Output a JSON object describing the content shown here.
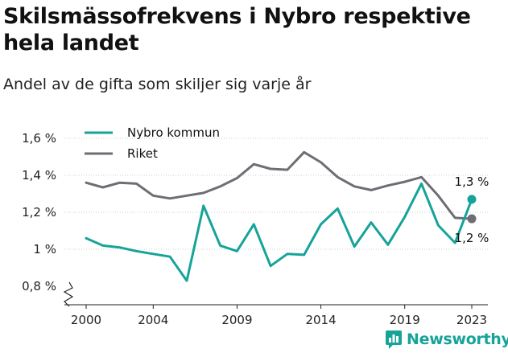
{
  "chart_data": {
    "type": "line",
    "title": "Skilsmässofrekvens i Nybro respektive hela landet",
    "subtitle": "Andel av de gifta som skiljer sig varje år",
    "xlabel": "",
    "ylabel": "",
    "x": [
      2000,
      2001,
      2002,
      2003,
      2004,
      2005,
      2006,
      2007,
      2008,
      2009,
      2010,
      2011,
      2012,
      2013,
      2014,
      2015,
      2016,
      2017,
      2018,
      2019,
      2020,
      2021,
      2022,
      2023
    ],
    "xticks": [
      2000,
      2004,
      2009,
      2014,
      2019,
      2023
    ],
    "xtick_labels": [
      "2000",
      "2004",
      "2009",
      "2014",
      "2019",
      "2023"
    ],
    "yticks": [
      0.8,
      1.0,
      1.2,
      1.4,
      1.6
    ],
    "ytick_labels": [
      "0,8 %",
      "1 %",
      "1,2 %",
      "1,4 %",
      "1,6 %"
    ],
    "ylim": [
      0.8,
      1.6
    ],
    "xlim": [
      2000,
      2023
    ],
    "grid": "horizontal",
    "legend_position": "top-left",
    "series": [
      {
        "name": "Nybro kommun",
        "color": "#16a39a",
        "values": [
          1.06,
          1.02,
          1.01,
          0.99,
          0.975,
          0.96,
          0.83,
          1.235,
          1.02,
          0.99,
          1.135,
          0.91,
          0.975,
          0.97,
          1.135,
          1.22,
          1.015,
          1.145,
          1.025,
          1.175,
          1.355,
          1.13,
          1.035,
          1.27
        ],
        "end_label": "1,3 %"
      },
      {
        "name": "Riket",
        "color": "#6e6d74",
        "values": [
          1.36,
          1.335,
          1.36,
          1.355,
          1.29,
          1.275,
          1.29,
          1.305,
          1.34,
          1.385,
          1.46,
          1.435,
          1.43,
          1.525,
          1.47,
          1.39,
          1.34,
          1.32,
          1.345,
          1.365,
          1.39,
          1.29,
          1.17,
          1.165
        ],
        "end_label": "1,2 %"
      }
    ]
  },
  "brand": {
    "name": "Newsworthy",
    "icon": "newsworthy-logo-icon",
    "color": "#16a39a"
  }
}
